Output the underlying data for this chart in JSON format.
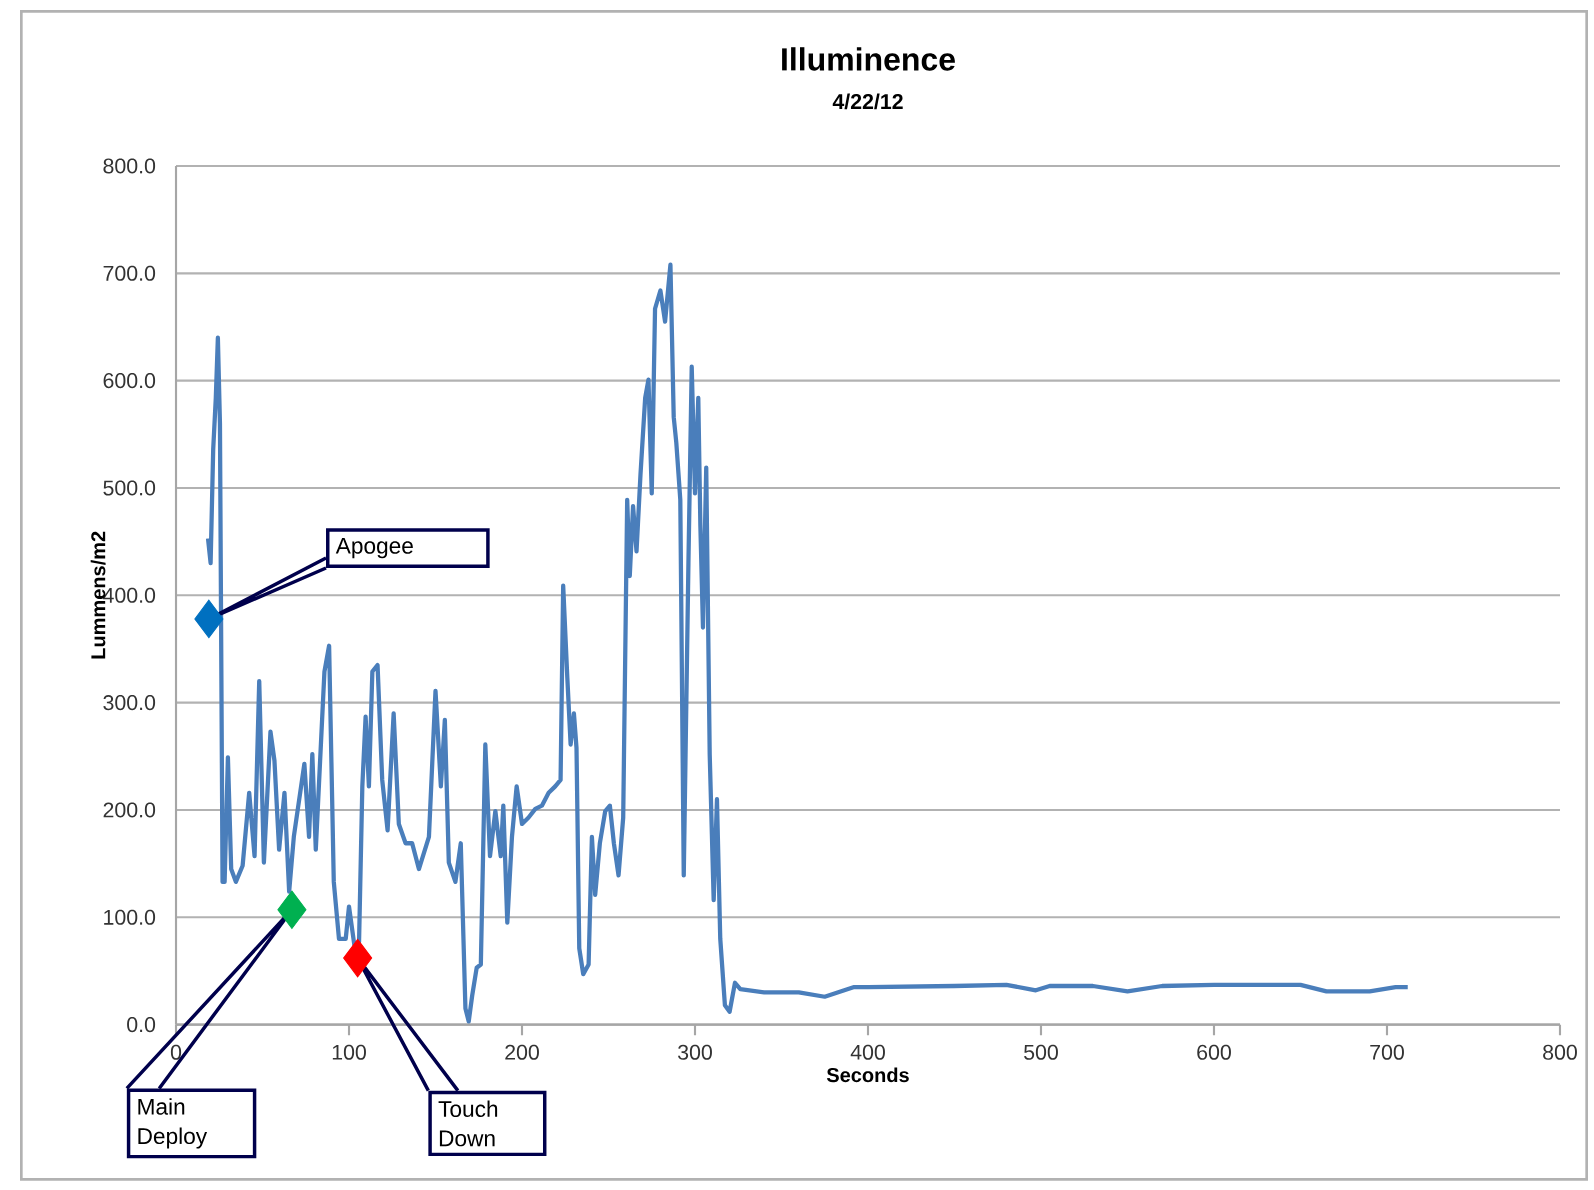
{
  "chart_data": {
    "type": "line",
    "title": "Illuminence",
    "subtitle": "4/22/12",
    "xlabel": "Seconds",
    "ylabel": "Lummens/m2",
    "xlim": [
      0,
      800
    ],
    "xticks": [
      0,
      100,
      200,
      300,
      400,
      500,
      600,
      700,
      800
    ],
    "ylim": [
      0,
      800
    ],
    "yticks": [
      {
        "value": 0,
        "label": "0.0"
      },
      {
        "value": 100,
        "label": "100.0"
      },
      {
        "value": 200,
        "label": "200.0"
      },
      {
        "value": 300,
        "label": "300.0"
      },
      {
        "value": 400,
        "label": "400.0"
      },
      {
        "value": 500,
        "label": "500.0"
      },
      {
        "value": 600,
        "label": "600.0"
      },
      {
        "value": 700,
        "label": "700.0"
      },
      {
        "value": 800,
        "label": "800.0"
      }
    ],
    "grid": "y",
    "series": [
      {
        "color": "#4a7ebb",
        "marker": "none",
        "line_style": "solid",
        "x": [
          18.5,
          20,
          21.5,
          23,
          24.2,
          25.4,
          26.9,
          28.1,
          30,
          31.9,
          34.6,
          38.5,
          42.3,
          45.4,
          48.1,
          50.8,
          54.6,
          56.9,
          59.6,
          62.7,
          65.4,
          68.1,
          74.2,
          76.9,
          78.8,
          80.8,
          85.8,
          88.5,
          91.2,
          94.2,
          98.1,
          100,
          103.1,
          105.8,
          107.7,
          109.6,
          111.5,
          113.5,
          116.5,
          119.2,
          122.3,
          125.8,
          128.8,
          132.7,
          136.5,
          140.4,
          146.2,
          150,
          153.1,
          155.4,
          157.7,
          161.5,
          164.6,
          167.3,
          169.2,
          171.2,
          173.8,
          176.2,
          178.8,
          181.5,
          184.6,
          187.7,
          189.2,
          191.5,
          194.2,
          196.9,
          200,
          203.8,
          207.7,
          211.5,
          215.4,
          219.2,
          222.3,
          223.8,
          226.2,
          228.1,
          230,
          231.5,
          233.1,
          235.4,
          238.5,
          240.4,
          242.3,
          245,
          248.1,
          250.8,
          253.1,
          255.8,
          258.5,
          260.8,
          262.3,
          264.2,
          266.2,
          268.5,
          271.2,
          273.1,
          275,
          276.9,
          280,
          282.7,
          285.8,
          287.7,
          289.2,
          291.5,
          293.5,
          296.2,
          298.1,
          300,
          301.9,
          303.1,
          304.6,
          306.5,
          308.5,
          310.8,
          312.7,
          314.6,
          317.3,
          320,
          323.1,
          326.2,
          340,
          360,
          375,
          392,
          400,
          450,
          480,
          497,
          505,
          530,
          550,
          570,
          600,
          650,
          665,
          690,
          705,
          712
        ],
        "values": [
          453,
          430,
          536,
          584,
          640,
          560,
          133,
          133,
          249,
          145,
          133,
          148,
          216,
          157,
          320,
          151,
          273,
          246,
          163,
          216,
          124,
          175,
          243,
          175,
          252,
          163,
          329,
          353,
          133,
          80,
          80,
          110,
          74,
          77,
          222,
          287,
          222,
          329,
          335,
          228,
          181,
          290,
          187,
          169,
          169,
          145,
          175,
          311,
          222,
          284,
          151,
          133,
          169,
          15,
          3,
          27,
          53,
          56,
          261,
          157,
          199,
          157,
          204,
          95,
          175,
          222,
          187,
          193,
          201,
          204,
          216,
          222,
          228,
          409,
          323,
          261,
          290,
          258,
          71,
          47,
          56,
          175,
          121,
          169,
          199,
          204,
          169,
          139,
          193,
          489,
          418,
          483,
          441,
          513,
          584,
          601,
          495,
          667,
          684,
          655,
          708,
          566,
          542,
          489,
          139,
          430,
          613,
          495,
          584,
          465,
          370,
          519,
          252,
          116,
          210,
          80,
          18,
          12,
          39,
          33,
          30,
          30,
          26,
          35,
          35,
          36,
          37,
          32,
          36,
          36,
          31,
          36,
          37,
          37,
          31,
          31,
          35,
          35
        ]
      },
      {
        "type": "scatter",
        "marker": "diamond",
        "colors": [
          "#0070c0",
          "#00b050",
          "#ff0000"
        ],
        "x": [
          19,
          67,
          105
        ],
        "values": [
          378,
          107,
          62
        ]
      }
    ],
    "annotations": [
      "Apogee",
      "Main Deploy",
      "Touch Down"
    ]
  }
}
